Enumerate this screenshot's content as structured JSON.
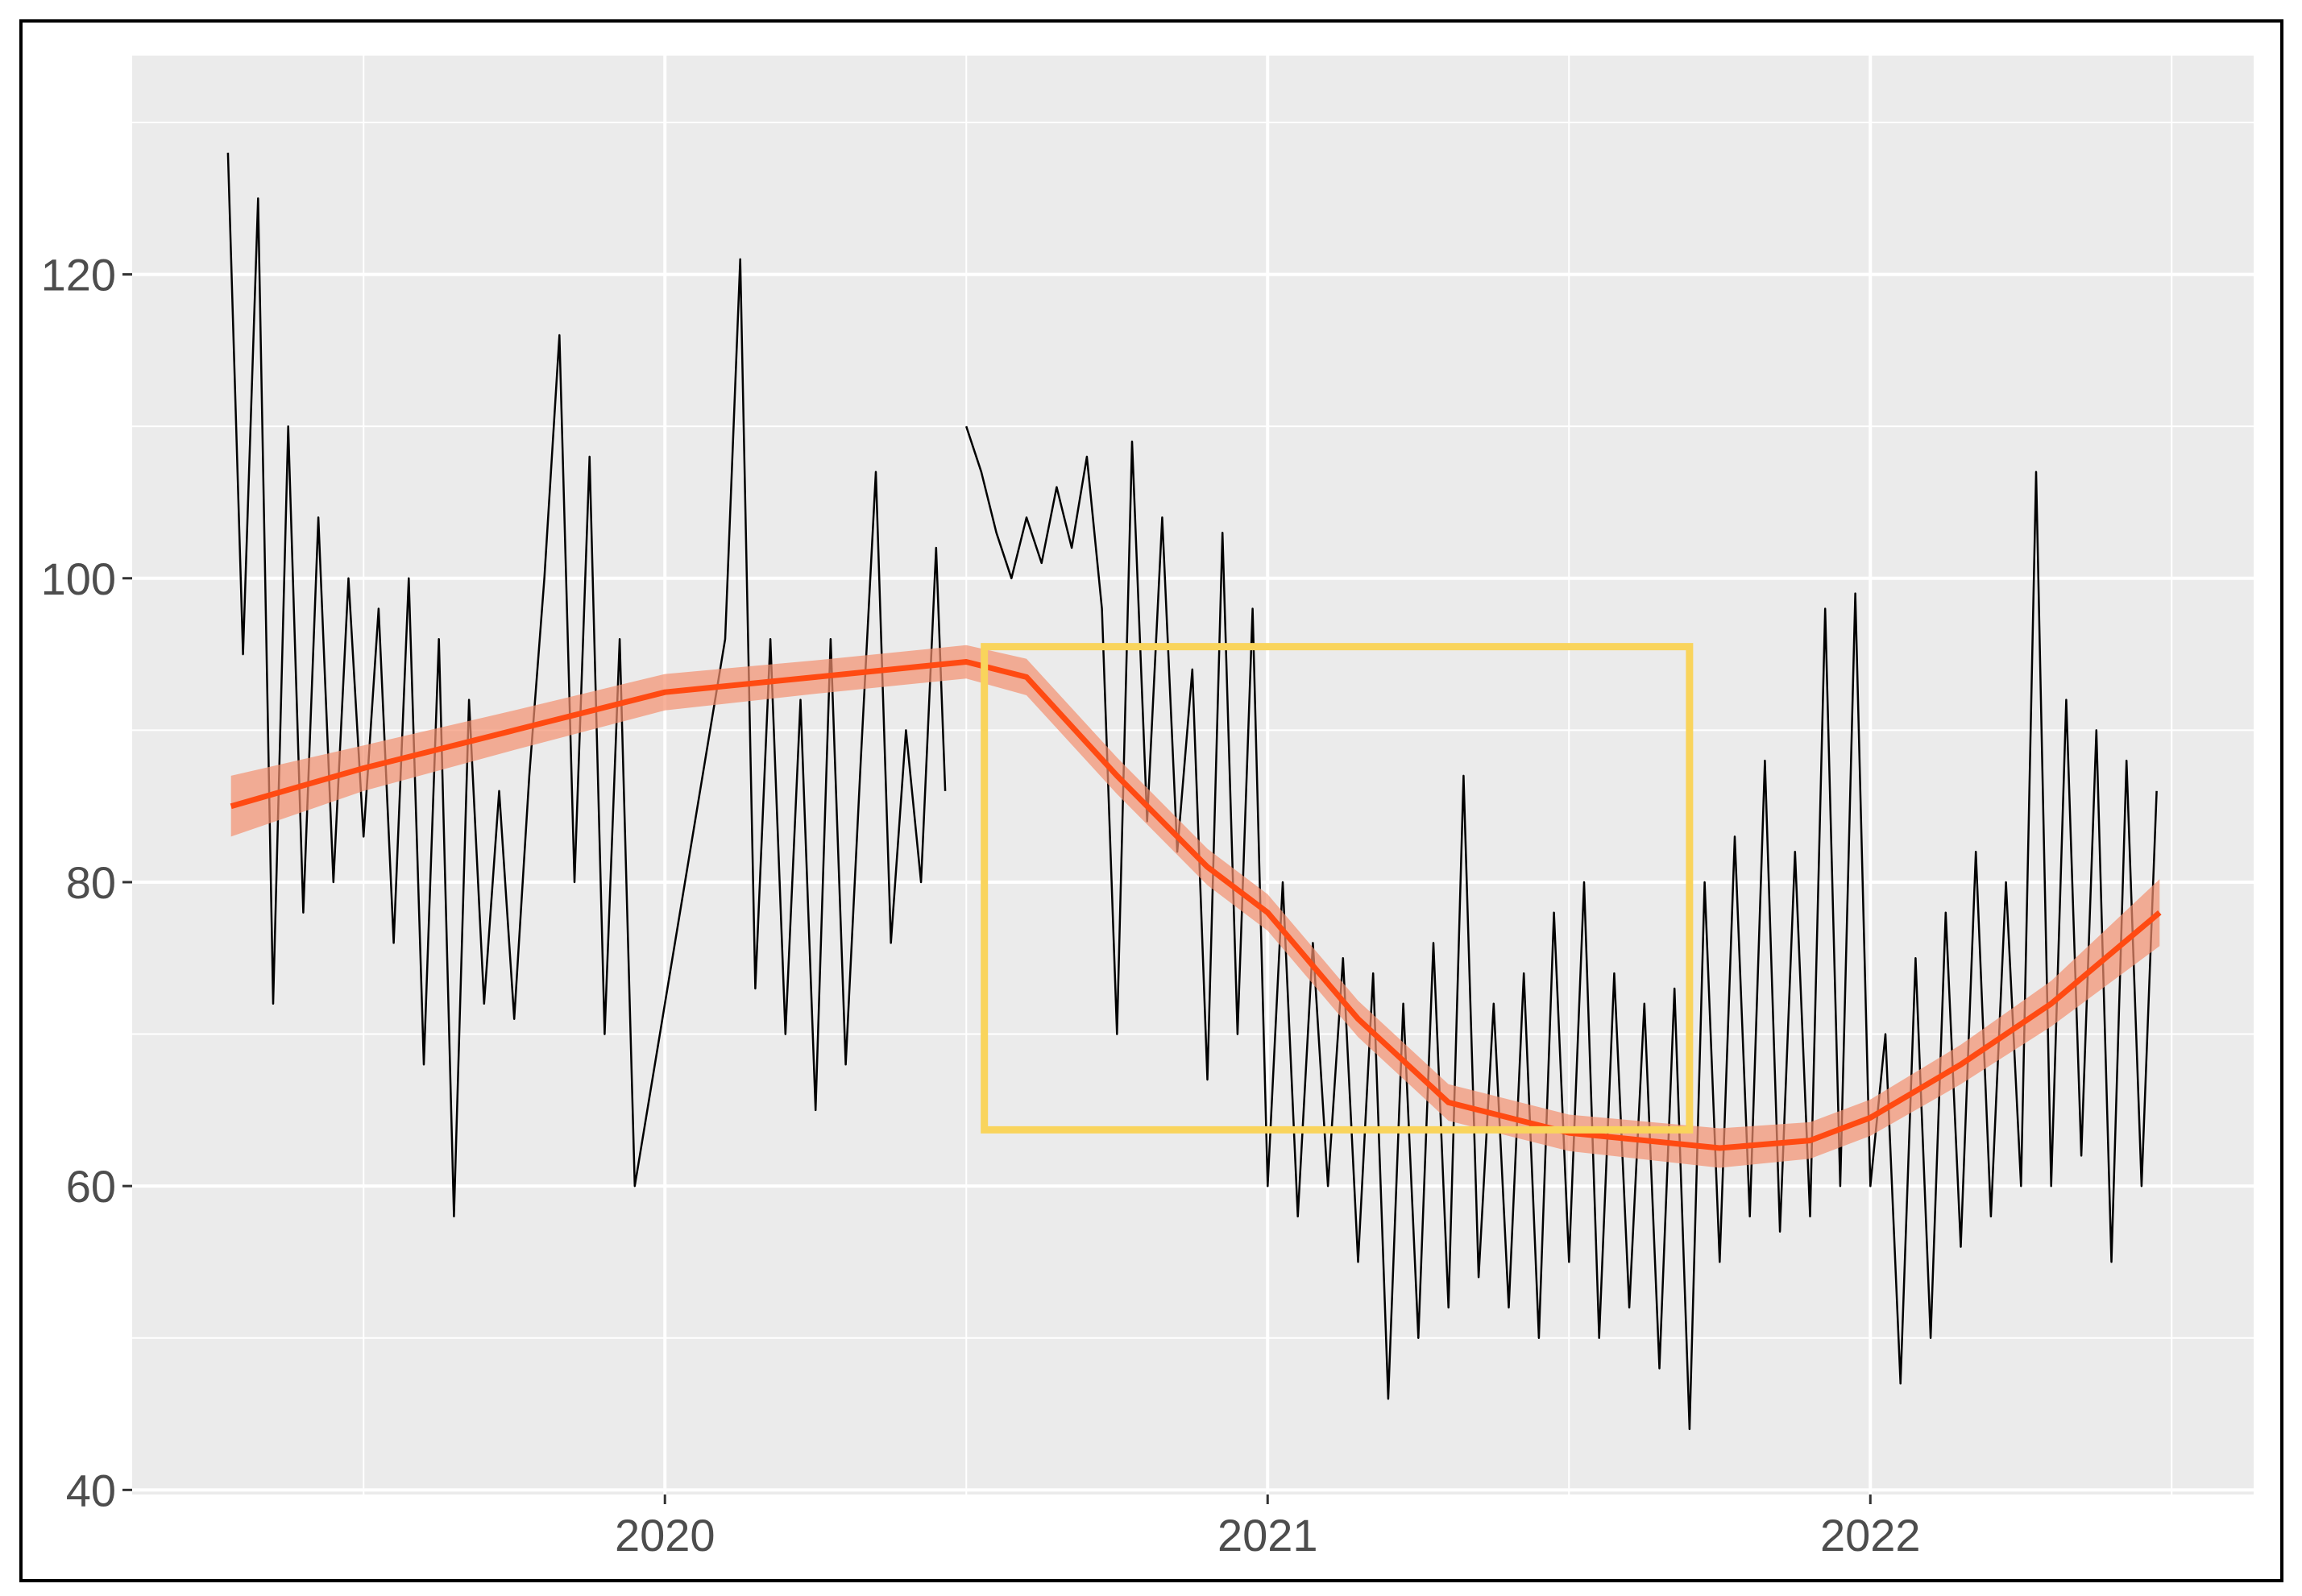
{
  "chart_data": {
    "type": "line",
    "xlim": [
      2019.116,
      2022.636
    ],
    "ylim": [
      39.7,
      134.4
    ],
    "xticks": [
      2020,
      2021,
      2022
    ],
    "yticks": [
      40,
      60,
      80,
      100,
      120
    ],
    "grid": true,
    "series": [
      {
        "color": "#000000",
        "x": [
          2019.275,
          2019.3,
          2019.325,
          2019.35,
          2019.375,
          2019.4,
          2019.425,
          2019.45,
          2019.475,
          2019.5,
          2019.525,
          2019.55,
          2019.575,
          2019.6,
          2019.625,
          2019.65,
          2019.675,
          2019.7,
          2019.725,
          2019.75,
          2019.775,
          2019.8,
          2019.825,
          2019.85,
          2019.875,
          2019.9,
          2019.925,
          2019.95,
          2020.1,
          2020.125,
          2020.15,
          2020.175,
          2020.2,
          2020.225,
          2020.25,
          2020.275,
          2020.3,
          2020.325,
          2020.35,
          2020.375,
          2020.4,
          2020.425,
          2020.45,
          2020.465,
          2020.48,
          2020.5,
          2020.525,
          2020.55,
          2020.575,
          2020.6,
          2020.625,
          2020.65,
          2020.675,
          2020.7,
          2020.725,
          2020.75,
          2020.775,
          2020.8,
          2020.825,
          2020.85,
          2020.875,
          2020.9,
          2020.925,
          2020.95,
          2020.975,
          2021.0,
          2021.025,
          2021.05,
          2021.075,
          2021.1,
          2021.125,
          2021.15,
          2021.175,
          2021.2,
          2021.225,
          2021.25,
          2021.275,
          2021.3,
          2021.325,
          2021.35,
          2021.375,
          2021.4,
          2021.425,
          2021.45,
          2021.475,
          2021.5,
          2021.525,
          2021.55,
          2021.575,
          2021.6,
          2021.625,
          2021.65,
          2021.675,
          2021.7,
          2021.725,
          2021.75,
          2021.775,
          2021.8,
          2021.825,
          2021.85,
          2021.875,
          2021.9,
          2021.925,
          2021.95,
          2021.975,
          2022.0,
          2022.025,
          2022.05,
          2022.075,
          2022.1,
          2022.125,
          2022.15,
          2022.175,
          2022.2,
          2022.225,
          2022.25,
          2022.275,
          2022.3,
          2022.325,
          2022.35,
          2022.375,
          2022.4,
          2022.425,
          2022.45,
          2022.475
        ],
        "values": [
          128,
          95,
          125,
          72,
          110,
          78,
          104,
          80,
          100,
          83,
          98,
          76,
          100,
          68,
          96,
          58,
          92,
          72,
          86,
          71,
          87,
          100,
          116,
          80,
          108,
          70,
          96,
          60,
          96,
          121,
          73,
          96,
          70,
          92,
          65,
          96,
          68,
          88,
          107,
          76,
          90,
          80,
          102,
          86,
          null,
          110,
          107,
          103,
          100,
          104,
          101,
          106,
          102,
          108,
          98,
          70,
          109,
          84,
          104,
          82,
          94,
          67,
          103,
          70,
          98,
          60,
          80,
          58,
          76,
          60,
          75,
          55,
          74,
          46,
          72,
          50,
          76,
          52,
          87,
          54,
          72,
          52,
          74,
          50,
          78,
          55,
          80,
          50,
          74,
          52,
          72,
          48,
          73,
          44,
          80,
          55,
          83,
          58,
          88,
          57,
          82,
          58,
          98,
          60,
          99,
          60,
          70,
          47,
          75,
          50,
          78,
          56,
          82,
          58,
          80,
          60,
          107,
          60,
          92,
          62,
          90,
          55,
          88,
          60,
          86
        ]
      },
      {
        "color": "#ff4a12",
        "x": [
          2019.28,
          2019.5,
          2019.75,
          2020.0,
          2020.25,
          2020.5,
          2020.6,
          2020.75,
          2020.9,
          2021.0,
          2021.15,
          2021.3,
          2021.5,
          2021.75,
          2021.9,
          2022.0,
          2022.15,
          2022.3,
          2022.48
        ],
        "values": [
          85,
          87.5,
          90,
          92.5,
          93.5,
          94.5,
          93.5,
          87,
          81,
          78,
          71,
          65.5,
          63.5,
          62.5,
          63,
          64.5,
          68,
          72,
          78
        ],
        "lower": [
          83,
          86,
          88.7,
          91.3,
          92.4,
          93.4,
          92.3,
          85.8,
          79.8,
          76.8,
          69.8,
          64.3,
          62.3,
          61.2,
          61.8,
          63.3,
          66.7,
          70.5,
          75.8
        ],
        "upper": [
          87,
          89,
          91.3,
          93.7,
          94.6,
          95.6,
          94.7,
          88.2,
          82.2,
          79.2,
          72.2,
          66.7,
          64.7,
          63.8,
          64.2,
          65.7,
          69.3,
          73.5,
          80.2
        ],
        "band_color": "#f4906f"
      }
    ],
    "highlight": {
      "xmin": 2020.53,
      "xmax": 2021.7,
      "ymin": 63.7,
      "ymax": 95.5,
      "color": "#f9d45c"
    }
  }
}
